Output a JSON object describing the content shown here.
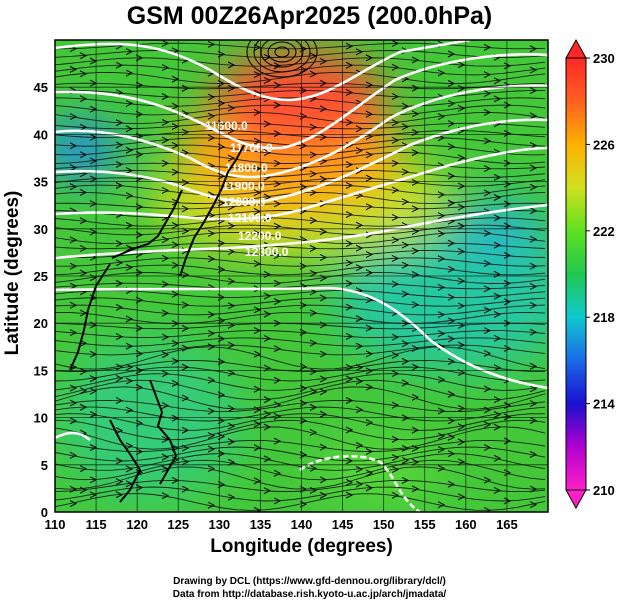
{
  "title": "GSM 00Z26Apr2025 (200.0hPa)",
  "xlabel": "Longitude (degrees)",
  "ylabel": "Latitude  (degrees)",
  "x_ticks": [
    "110",
    "115",
    "120",
    "125",
    "130",
    "135",
    "140",
    "145",
    "150",
    "155",
    "160",
    "165"
  ],
  "y_ticks": [
    "0",
    "5",
    "10",
    "15",
    "20",
    "25",
    "30",
    "35",
    "40",
    "45"
  ],
  "colorbar_ticks": [
    "210",
    "214",
    "218",
    "222",
    "226",
    "230"
  ],
  "contour_labels": [
    "11600.0",
    "11700.0",
    "11800.0",
    "11900.0",
    "12000.0",
    "12100.0",
    "12200.0",
    "12300.0"
  ],
  "credits": [
    "Drawing by DCL (https://www.gfd-dennou.org/library/dcl/)",
    "Data from http://database.rish.kyoto-u.ac.jp/arch/jmadata/"
  ],
  "colors": {
    "cold": "#2060e0",
    "mid": "#30c020",
    "warm": "#ff8a00",
    "hot": "#ff3030"
  }
}
